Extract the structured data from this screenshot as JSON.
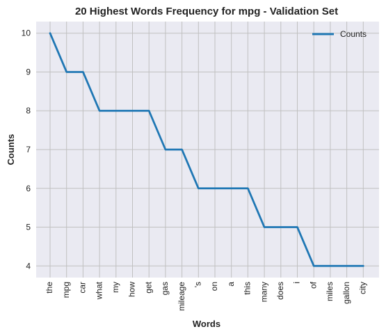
{
  "chart_data": {
    "type": "line",
    "title": "20 Highest Words Frequency for mpg - Validation Set",
    "xlabel": "Words",
    "ylabel": "Counts",
    "categories": [
      "the",
      "mpg",
      "car",
      "what",
      "my",
      "how",
      "get",
      "gas",
      "mileage",
      "'s",
      "on",
      "a",
      "this",
      "many",
      "does",
      "i",
      "of",
      "miles",
      "gallon",
      "city"
    ],
    "series": [
      {
        "name": "Counts",
        "values": [
          10,
          9,
          9,
          8,
          8,
          8,
          8,
          7,
          7,
          6,
          6,
          6,
          6,
          5,
          5,
          5,
          4,
          4,
          4,
          4
        ],
        "color": "#1f77b4"
      }
    ],
    "yticks": [
      4,
      5,
      6,
      7,
      8,
      9,
      10
    ],
    "ylim": [
      3.7,
      10.3
    ],
    "grid": true,
    "legend_position": "top-right",
    "background_color": "#eaeaf2",
    "grid_color": "#c0c0c0"
  }
}
